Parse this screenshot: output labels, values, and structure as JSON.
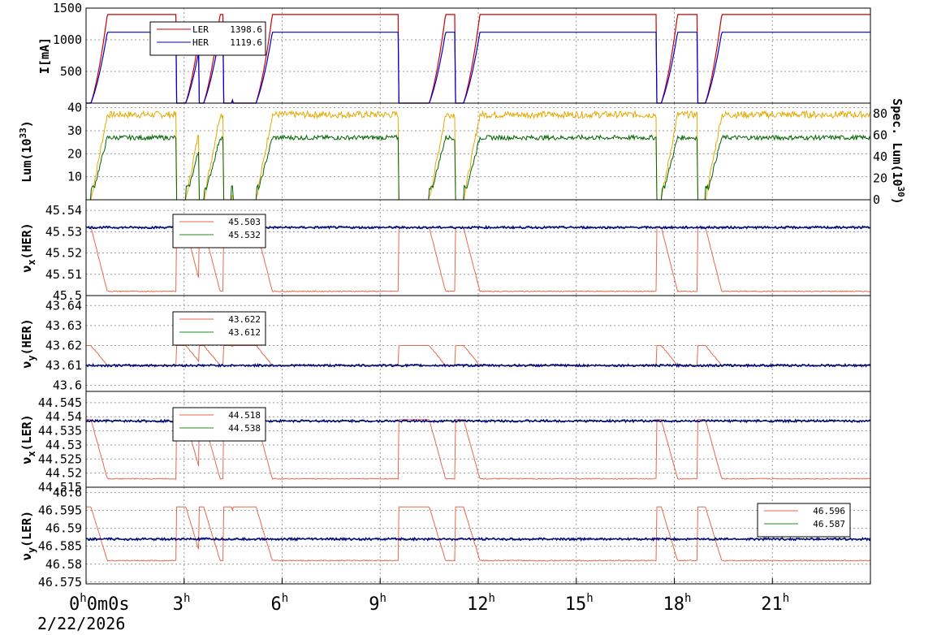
{
  "colors": {
    "ler": "#cc0000",
    "her": "#0000cc",
    "lum": "#e6a800",
    "spec": "#006400",
    "tune_ler_ref": "#e8684a",
    "tune_meas": "#000080",
    "tune_set": "#228b22"
  },
  "date_label": "2/22/2026",
  "chart_data": [
    {
      "type": "line",
      "name": "beam-current",
      "ylabel": "I[mA]",
      "ylim": [
        0,
        1500
      ],
      "yticks": [
        500,
        1000,
        1500
      ],
      "series": [
        {
          "name": "LER",
          "color": "ler",
          "legend_value": "1398.6",
          "plateau": 1398.6
        },
        {
          "name": "HER",
          "color": "her",
          "legend_value": "1119.6",
          "plateau": 1119.6
        }
      ]
    },
    {
      "type": "line",
      "name": "luminosity",
      "ylabel": "Lum(10",
      "ylabel_exp": "33",
      "ylabel_close": ")",
      "ylim": [
        0,
        42
      ],
      "yticks": [
        10,
        20,
        30,
        40
      ],
      "y2label": "Spec. Lum(10",
      "y2label_exp": "30",
      "y2label_close": ")",
      "y2ticks": [
        0,
        20,
        40,
        60,
        80
      ],
      "series": [
        {
          "color": "lum",
          "plateau": 37
        },
        {
          "color": "spec",
          "plateau": 27
        }
      ]
    },
    {
      "type": "line",
      "name": "nux-her",
      "ylabel": "ν",
      "ylabel_sub": "x",
      "ylabel_tail": "(HER)",
      "ylim": [
        45.5,
        45.545
      ],
      "yticks": [
        45.5,
        45.51,
        45.52,
        45.53,
        45.54
      ],
      "series": [
        {
          "color": "tune_ler_ref",
          "legend_value": "45.503",
          "low": 45.502,
          "high": 45.532
        },
        {
          "color": "tune_set",
          "legend_value": "45.532",
          "level": 45.532
        }
      ]
    },
    {
      "type": "line",
      "name": "nuy-her",
      "ylabel": "ν",
      "ylabel_sub": "y",
      "ylabel_tail": "(HER)",
      "ylim": [
        43.597,
        43.645
      ],
      "yticks": [
        43.6,
        43.61,
        43.62,
        43.63,
        43.64
      ],
      "series": [
        {
          "color": "tune_ler_ref",
          "legend_value": "43.622",
          "low": 43.61,
          "high": 43.62
        },
        {
          "color": "tune_set",
          "legend_value": "43.612",
          "level": 43.61
        }
      ]
    },
    {
      "type": "line",
      "name": "nux-ler",
      "ylabel": "ν",
      "ylabel_sub": "x",
      "ylabel_tail": "(LER)",
      "ylim": [
        44.515,
        44.549
      ],
      "yticks": [
        44.515,
        44.52,
        44.525,
        44.53,
        44.535,
        44.54,
        44.545
      ],
      "series": [
        {
          "color": "tune_ler_ref",
          "legend_value": "44.518",
          "low": 44.518,
          "high": 44.539
        },
        {
          "color": "tune_set",
          "legend_value": "44.538",
          "level": 44.5385
        }
      ]
    },
    {
      "type": "line",
      "name": "nuy-ler",
      "ylabel": "ν",
      "ylabel_sub": "y",
      "ylabel_tail": "(LER)",
      "ylim": [
        46.5745,
        46.6015
      ],
      "yticks": [
        46.575,
        46.58,
        46.585,
        46.59,
        46.595,
        46.6
      ],
      "series": [
        {
          "color": "tune_ler_ref",
          "legend_value": "46.596",
          "low": 46.581,
          "high": 46.596
        },
        {
          "color": "tune_set",
          "legend_value": "46.587",
          "level": 46.587
        }
      ]
    }
  ],
  "x_axis": {
    "xlim_hours": [
      0,
      24
    ],
    "ticks": [
      {
        "hour": 0,
        "label": "0",
        "unit": "h",
        "extra": "0m0s"
      },
      {
        "hour": 3,
        "label": "3",
        "unit": "h"
      },
      {
        "hour": 6,
        "label": "6",
        "unit": "h"
      },
      {
        "hour": 9,
        "label": "9",
        "unit": "h"
      },
      {
        "hour": 12,
        "label": "12",
        "unit": "h"
      },
      {
        "hour": 15,
        "label": "15",
        "unit": "h"
      },
      {
        "hour": 18,
        "label": "18",
        "unit": "h"
      },
      {
        "hour": 21,
        "label": "21",
        "unit": "h"
      }
    ]
  },
  "beam_off_periods_hours": [
    [
      2.75,
      3.05
    ],
    [
      3.45,
      3.6
    ],
    [
      4.2,
      4.45
    ],
    [
      4.5,
      5.2
    ],
    [
      9.55,
      10.5
    ],
    [
      11.3,
      11.55
    ],
    [
      17.45,
      17.6
    ],
    [
      18.7,
      18.95
    ]
  ]
}
